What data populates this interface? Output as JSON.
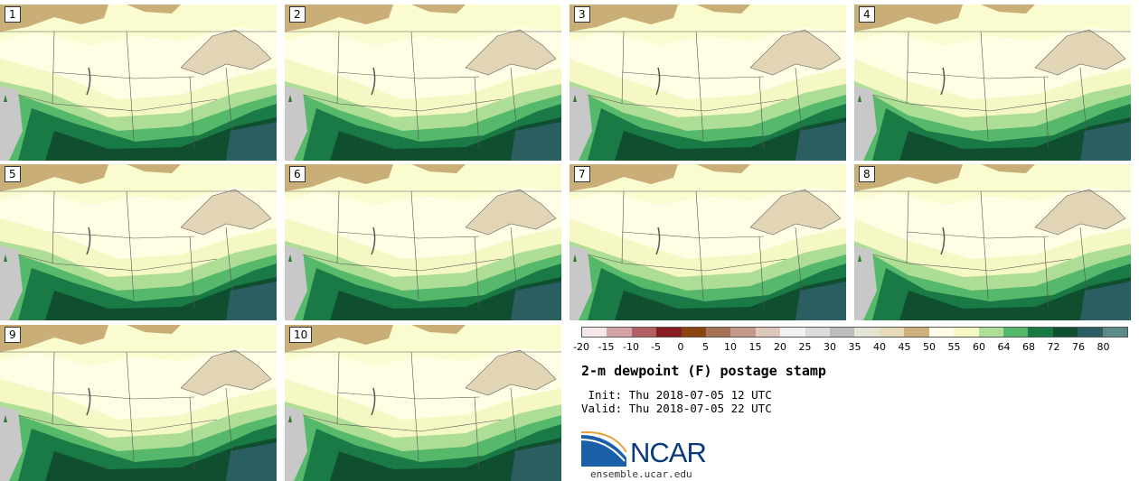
{
  "panels": [
    {
      "label": "1"
    },
    {
      "label": "2"
    },
    {
      "label": "3"
    },
    {
      "label": "4"
    },
    {
      "label": "5"
    },
    {
      "label": "6"
    },
    {
      "label": "7"
    },
    {
      "label": "8"
    },
    {
      "label": "9"
    },
    {
      "label": "10"
    }
  ],
  "colorbar": {
    "colors": [
      "#f5e6e8",
      "#d4a3a6",
      "#b06065",
      "#8a1c24",
      "#8b4513",
      "#a6735a",
      "#c49a88",
      "#ddc8bc",
      "#f2f2f2",
      "#dcdcdc",
      "#bdbdbd",
      "#e3e3d6",
      "#e8dcb8",
      "#cfb07a",
      "#fffde8",
      "#f5f8c4",
      "#aedd95",
      "#55b86a",
      "#1a7a45",
      "#0f4f30",
      "#2a5e60",
      "#5a8a8a"
    ],
    "ticks": [
      "-20",
      "-15",
      "-10",
      "-5",
      "0",
      "5",
      "10",
      "15",
      "20",
      "25",
      "30",
      "35",
      "40",
      "45",
      "50",
      "55",
      "60",
      "64",
      "68",
      "72",
      "76",
      "80"
    ]
  },
  "title": "2-m dewpoint (F) postage stamp",
  "init": " Init: Thu 2018-07-05 12 UTC",
  "valid": "Valid: Thu 2018-07-05 22 UTC",
  "logo": {
    "name": "NCAR",
    "url": "ensemble.ucar.edu"
  }
}
